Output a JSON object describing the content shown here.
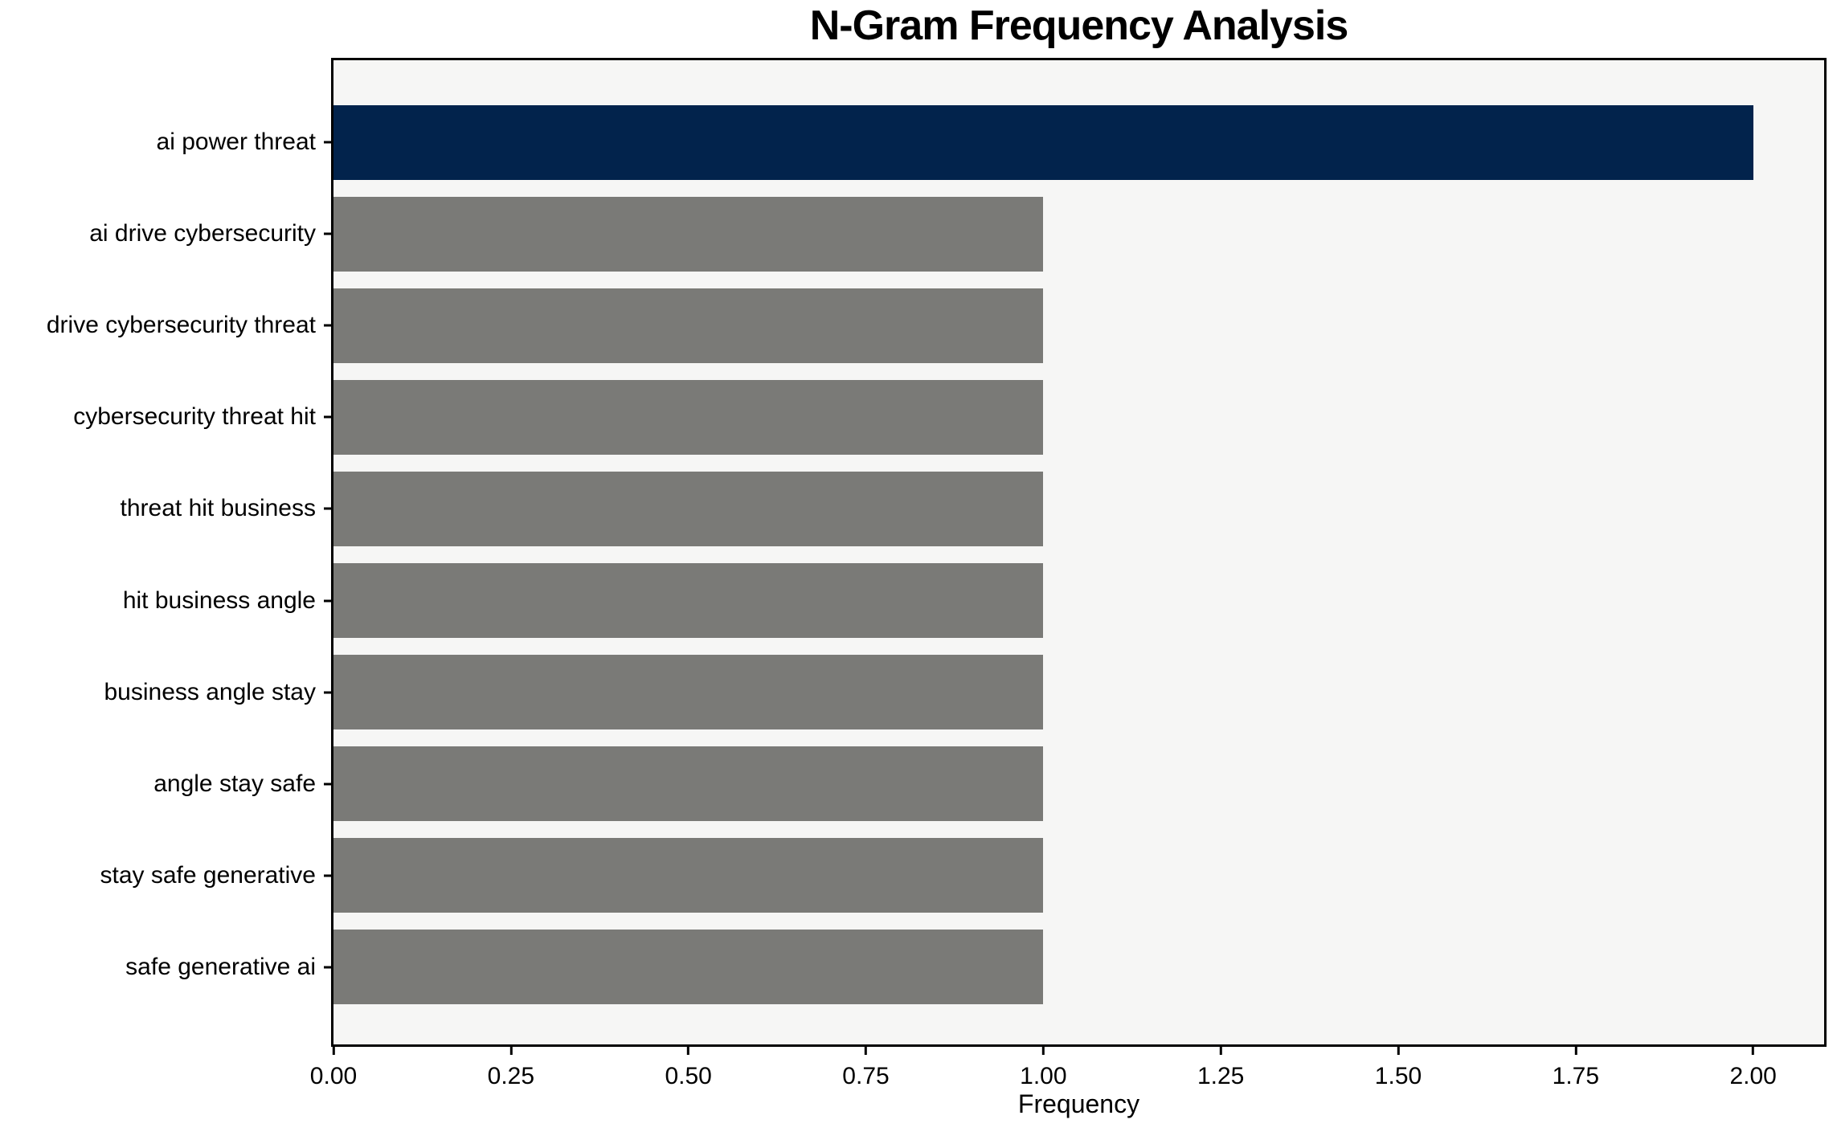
{
  "chart_data": {
    "type": "bar",
    "orientation": "horizontal",
    "title": "N-Gram Frequency Analysis",
    "xlabel": "Frequency",
    "ylabel": "",
    "categories": [
      "ai power threat",
      "ai drive cybersecurity",
      "drive cybersecurity threat",
      "cybersecurity threat hit",
      "threat hit business",
      "hit business angle",
      "business angle stay",
      "angle stay safe",
      "stay safe generative",
      "safe generative ai"
    ],
    "values": [
      2,
      1,
      1,
      1,
      1,
      1,
      1,
      1,
      1,
      1
    ],
    "highlight_index": 0,
    "xlim": [
      0,
      2.1
    ],
    "xticks": [
      {
        "value": 0.0,
        "label": "0.00"
      },
      {
        "value": 0.25,
        "label": "0.25"
      },
      {
        "value": 0.5,
        "label": "0.50"
      },
      {
        "value": 0.75,
        "label": "0.75"
      },
      {
        "value": 1.0,
        "label": "1.00"
      },
      {
        "value": 1.25,
        "label": "1.25"
      },
      {
        "value": 1.5,
        "label": "1.50"
      },
      {
        "value": 1.75,
        "label": "1.75"
      },
      {
        "value": 2.0,
        "label": "2.00"
      }
    ],
    "grid": false,
    "legend": null,
    "colors": {
      "highlight_bar": "#02234c",
      "default_bar": "#7a7a77",
      "plot_background": "#f6f6f5",
      "figure_background": "#ffffff",
      "spine": "#000000",
      "text": "#000000"
    }
  }
}
